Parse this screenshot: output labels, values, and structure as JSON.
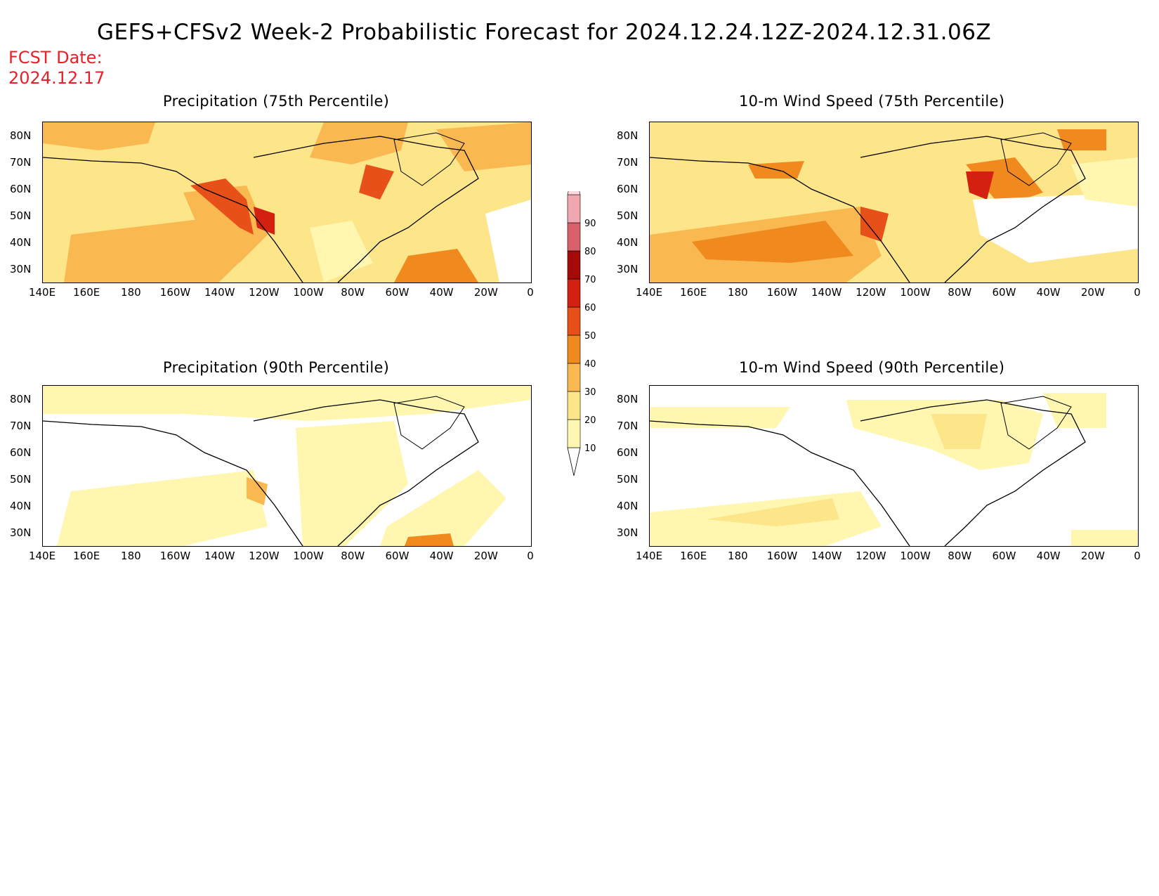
{
  "title": "GEFS+CFSv2 Week-2 Probabilistic Forecast for 2024.12.24.12Z-2024.12.31.06Z",
  "fcst_label": "FCST Date:",
  "fcst_date": "2024.12.17",
  "panels": [
    {
      "title": "Precipitation (75th Percentile)"
    },
    {
      "title": "10-m Wind Speed (75th Percentile)"
    },
    {
      "title": "Precipitation (90th Percentile)"
    },
    {
      "title": "10-m Wind Speed (90th Percentile)"
    }
  ],
  "lat_labels": [
    "80N",
    "70N",
    "60N",
    "50N",
    "40N",
    "30N"
  ],
  "lon_labels": [
    "140E",
    "160E",
    "180",
    "160W",
    "140W",
    "120W",
    "100W",
    "80W",
    "60W",
    "40W",
    "20W",
    "0"
  ],
  "colorbar": {
    "levels": [
      "10",
      "20",
      "30",
      "40",
      "50",
      "60",
      "70",
      "80",
      "90"
    ],
    "colors": [
      "#fff7b0",
      "#fde58a",
      "#f9b850",
      "#f18a1e",
      "#e8501a",
      "#d42010",
      "#a40a08",
      "#d8606a",
      "#f2a6b0",
      "#fcd9dc"
    ]
  }
}
